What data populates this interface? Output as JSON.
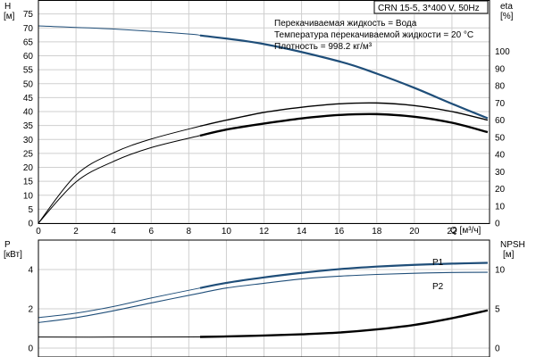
{
  "chart_data": [
    {
      "type": "line",
      "title": "CRN 15-5, 3*400 V, 50Hz",
      "annotations": [
        "Перекачиваемая жидкость = Вода",
        "Температура перекачиваемой жидкости = 20 °C",
        "Плотность = 998.2 кг/м³"
      ],
      "xlabel": "Q [м³/ч]",
      "x_ticks": [
        "0",
        "2",
        "4",
        "6",
        "8",
        "10",
        "12",
        "14",
        "16",
        "18",
        "20",
        "22"
      ],
      "xlim": [
        0,
        24
      ],
      "left_axis": {
        "label_line1": "H",
        "label_line2": "[м]",
        "ylim": [
          0,
          80
        ],
        "ticks": [
          "0",
          "5",
          "10",
          "15",
          "20",
          "25",
          "30",
          "35",
          "40",
          "45",
          "50",
          "55",
          "60",
          "65",
          "70",
          "75"
        ]
      },
      "right_axis": {
        "label_line1": "eta",
        "label_line2": "[%]",
        "ylim": [
          0,
          130
        ],
        "ticks": [
          "0",
          "10",
          "20",
          "30",
          "40",
          "50",
          "60",
          "70",
          "80",
          "90",
          "100"
        ]
      },
      "grid": true,
      "series": [
        {
          "key": "head",
          "axis": "left",
          "color": "#1f4e79",
          "x": [
            0,
            4,
            8,
            8.6,
            12,
            16,
            18,
            20,
            22,
            23.9
          ],
          "y": [
            70.7,
            69.6,
            67.8,
            67.3,
            64.2,
            58.0,
            53.6,
            48.5,
            42.8,
            37.6
          ]
        },
        {
          "key": "eta_thin",
          "axis": "right",
          "color": "#000000",
          "x": [
            0,
            2,
            4,
            6,
            8.6,
            10,
            12,
            14,
            16,
            18,
            20,
            22,
            23.9
          ],
          "y": [
            0,
            28,
            41,
            49,
            56.5,
            60,
            64.5,
            67.5,
            69.5,
            70,
            68.5,
            65,
            60
          ]
        },
        {
          "key": "eta_thick",
          "axis": "right",
          "color": "#000000",
          "x": [
            0,
            2,
            4,
            6,
            8.6,
            10,
            12,
            14,
            16,
            18,
            20,
            22,
            23.9
          ],
          "y": [
            0,
            24,
            36,
            44,
            51,
            54.5,
            58,
            61,
            63,
            63.5,
            62,
            58.5,
            53
          ]
        }
      ]
    },
    {
      "type": "line",
      "xlim": [
        0,
        24
      ],
      "left_axis": {
        "label_line1": "P",
        "label_line2": "[кВт]",
        "ylim": [
          0,
          5.5
        ],
        "ticks": [
          "0",
          "2",
          "4"
        ]
      },
      "right_axis": {
        "label_line1": "NPSH",
        "label_line2": "[м]",
        "ylim": [
          0,
          13.75
        ],
        "ticks": [
          "0",
          "5",
          "10"
        ]
      },
      "grid": true,
      "series": [
        {
          "name": "P1",
          "key": "p1",
          "axis": "left",
          "color": "#1f4e79",
          "x": [
            0,
            2,
            4,
            6,
            8.6,
            10,
            12,
            14,
            16,
            18,
            20,
            22,
            23.9
          ],
          "y": [
            1.55,
            1.78,
            2.12,
            2.55,
            3.06,
            3.32,
            3.6,
            3.83,
            4.02,
            4.15,
            4.24,
            4.3,
            4.34
          ]
        },
        {
          "name": "P2",
          "key": "p2",
          "axis": "left",
          "color": "#1f4e79",
          "x": [
            0,
            2,
            4,
            6,
            8.6,
            10,
            12,
            14,
            16,
            18,
            20,
            22,
            23.9
          ],
          "y": [
            1.3,
            1.55,
            1.9,
            2.3,
            2.8,
            3.06,
            3.3,
            3.52,
            3.66,
            3.75,
            3.81,
            3.85,
            3.86
          ]
        },
        {
          "key": "npsh",
          "axis": "right",
          "color": "#000000",
          "x": [
            0,
            4,
            8.6,
            10,
            12,
            14,
            16,
            18,
            20,
            22,
            23.9
          ],
          "y": [
            1.4,
            1.4,
            1.42,
            1.48,
            1.6,
            1.75,
            1.98,
            2.38,
            2.95,
            3.8,
            4.8
          ]
        }
      ]
    }
  ]
}
